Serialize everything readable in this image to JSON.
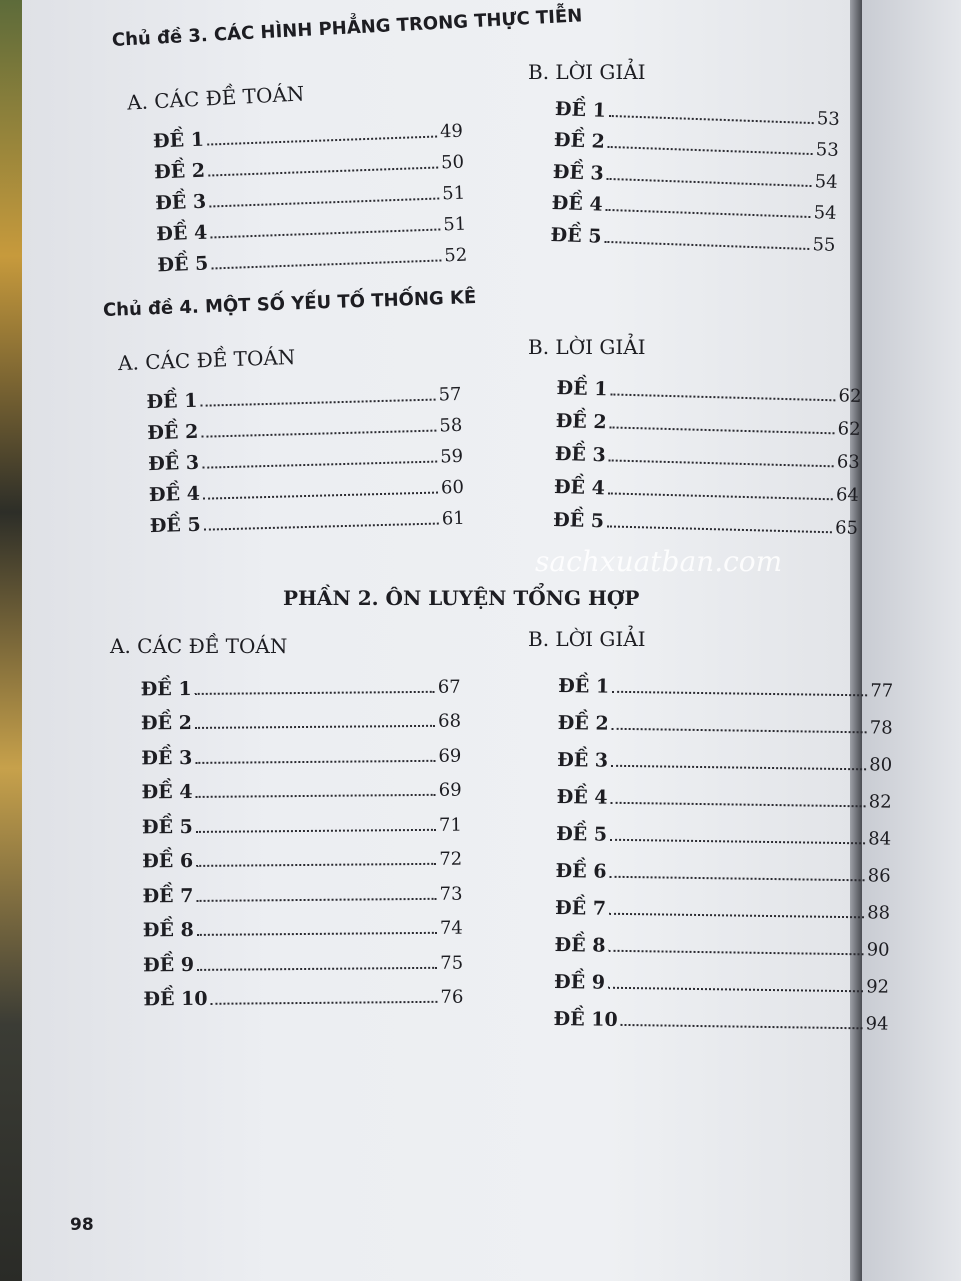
{
  "watermark": "sachxuatban.com",
  "page_number": "98",
  "topic3": {
    "title": "Chủ đề 3. CÁC HÌNH PHẲNG TRONG THỰC TIỄN",
    "a_title": "A. CÁC ĐỀ TOÁN",
    "a_items": [
      {
        "label": "ĐỀ 1",
        "page": "49"
      },
      {
        "label": "ĐỀ 2",
        "page": "50"
      },
      {
        "label": "ĐỀ 3",
        "page": "51"
      },
      {
        "label": "ĐỀ 4",
        "page": "51"
      },
      {
        "label": "ĐỀ 5",
        "page": "52"
      }
    ],
    "b_title": "B. LỜI GIẢI",
    "b_items": [
      {
        "label": "ĐỀ 1",
        "page": "53"
      },
      {
        "label": "ĐỀ 2",
        "page": "53"
      },
      {
        "label": "ĐỀ 3",
        "page": "54"
      },
      {
        "label": "ĐỀ 4",
        "page": "54"
      },
      {
        "label": "ĐỀ 5",
        "page": "55"
      }
    ]
  },
  "topic4": {
    "title": "Chủ đề 4. MỘT SỐ YẾU TỐ THỐNG KÊ",
    "a_title": "A. CÁC ĐỀ TOÁN",
    "a_items": [
      {
        "label": "ĐỀ 1",
        "page": "57"
      },
      {
        "label": "ĐỀ 2",
        "page": "58"
      },
      {
        "label": "ĐỀ 3",
        "page": "59"
      },
      {
        "label": "ĐỀ 4",
        "page": "60"
      },
      {
        "label": "ĐỀ 5",
        "page": "61"
      }
    ],
    "b_title": "B. LỜI GIẢI",
    "b_items": [
      {
        "label": "ĐỀ 1",
        "page": "62"
      },
      {
        "label": "ĐỀ 2",
        "page": "62"
      },
      {
        "label": "ĐỀ 3",
        "page": "63"
      },
      {
        "label": "ĐỀ 4",
        "page": "64"
      },
      {
        "label": "ĐỀ 5",
        "page": "65"
      }
    ]
  },
  "part2": {
    "title": "PHẦN 2. ÔN LUYỆN TỔNG HỢP",
    "a_title": "A. CÁC ĐỀ TOÁN",
    "a_items": [
      {
        "label": "ĐỀ 1",
        "page": "67"
      },
      {
        "label": "ĐỀ 2",
        "page": "68"
      },
      {
        "label": "ĐỀ 3",
        "page": "69"
      },
      {
        "label": "ĐỀ 4",
        "page": "69"
      },
      {
        "label": "ĐỀ 5",
        "page": "71"
      },
      {
        "label": "ĐỀ 6",
        "page": "72"
      },
      {
        "label": "ĐỀ 7",
        "page": "73"
      },
      {
        "label": "ĐỀ 8",
        "page": "74"
      },
      {
        "label": "ĐỀ 9",
        "page": "75"
      },
      {
        "label": "ĐỀ 10",
        "page": "76"
      }
    ],
    "b_title": "B. LỜI GIẢI",
    "b_items": [
      {
        "label": "ĐỀ 1",
        "page": "77"
      },
      {
        "label": "ĐỀ 2",
        "page": "78"
      },
      {
        "label": "ĐỀ 3",
        "page": "80"
      },
      {
        "label": "ĐỀ 4",
        "page": "82"
      },
      {
        "label": "ĐỀ 5",
        "page": "84"
      },
      {
        "label": "ĐỀ 6",
        "page": "86"
      },
      {
        "label": "ĐỀ 7",
        "page": "88"
      },
      {
        "label": "ĐỀ 8",
        "page": "90"
      },
      {
        "label": "ĐỀ 9",
        "page": "92"
      },
      {
        "label": "ĐỀ 10",
        "page": "94"
      }
    ]
  }
}
